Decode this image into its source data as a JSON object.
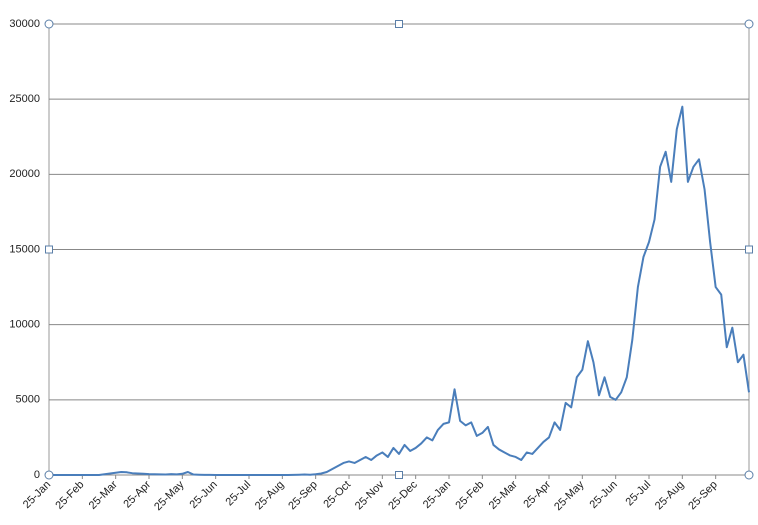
{
  "chart_data": {
    "type": "line",
    "categories": [
      "25-Jan",
      null,
      null,
      null,
      null,
      null,
      "25-Feb",
      null,
      null,
      null,
      null,
      null,
      "25-Mar",
      null,
      null,
      null,
      null,
      null,
      "25-Apr",
      null,
      null,
      null,
      null,
      null,
      "25-May",
      null,
      null,
      null,
      null,
      null,
      "25-Jun",
      null,
      null,
      null,
      null,
      null,
      "25-Jul",
      null,
      null,
      null,
      null,
      null,
      "25-Aug",
      null,
      null,
      null,
      null,
      null,
      "25-Sep",
      null,
      null,
      null,
      null,
      null,
      "25-Oct",
      null,
      null,
      null,
      null,
      null,
      "25-Nov",
      null,
      null,
      null,
      null,
      null,
      "25-Dec",
      null,
      null,
      null,
      null,
      null,
      "25-Jan",
      null,
      null,
      null,
      null,
      null,
      "25-Feb",
      null,
      null,
      null,
      null,
      null,
      "25-Mar",
      null,
      null,
      null,
      null,
      null,
      "25-Apr",
      null,
      null,
      null,
      null,
      null,
      "25-May",
      null,
      null,
      null,
      null,
      null,
      "25-Jun",
      null,
      null,
      null,
      null,
      null,
      "25-Jul",
      null,
      null,
      null,
      null,
      null,
      "25-Aug",
      null,
      null,
      null,
      null,
      null,
      "25-Sep",
      null,
      null,
      null,
      null,
      null,
      null
    ],
    "values": [
      0,
      0,
      0,
      0,
      0,
      0,
      0,
      0,
      0,
      0,
      50,
      100,
      150,
      200,
      180,
      120,
      100,
      80,
      60,
      50,
      40,
      30,
      60,
      40,
      80,
      200,
      30,
      20,
      10,
      10,
      0,
      0,
      0,
      0,
      0,
      0,
      0,
      0,
      0,
      0,
      0,
      0,
      0,
      0,
      10,
      20,
      30,
      20,
      50,
      100,
      200,
      400,
      600,
      800,
      900,
      800,
      1000,
      1200,
      1000,
      1300,
      1500,
      1200,
      1800,
      1400,
      2000,
      1600,
      1800,
      2100,
      2500,
      2300,
      3000,
      3400,
      3500,
      5700,
      3600,
      3300,
      3500,
      2600,
      2800,
      3200,
      2000,
      1700,
      1500,
      1300,
      1200,
      1000,
      1500,
      1400,
      1800,
      2200,
      2500,
      3500,
      3000,
      4800,
      4500,
      6500,
      7000,
      8900,
      7500,
      5300,
      6500,
      5200,
      5000,
      5500,
      6500,
      9000,
      12500,
      14500,
      15500,
      17000,
      20500,
      21500,
      19500,
      23000,
      24500,
      19500,
      20500,
      21000,
      19000,
      15500,
      12500,
      12000,
      8500,
      9800,
      7500,
      8000,
      5500
    ],
    "color": "#4a7ebb",
    "ylim": [
      0,
      30000
    ],
    "yticks": [
      0,
      5000,
      10000,
      15000,
      20000,
      25000,
      30000
    ],
    "grid": true
  }
}
